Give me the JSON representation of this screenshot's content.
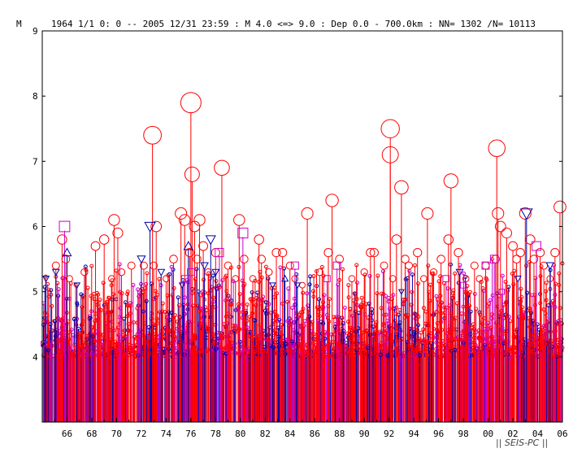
{
  "chart_data": {
    "type": "scatter",
    "style": "magnitude-time stem plot",
    "header": {
      "ylabel": "M",
      "text": "1964 1/1  0: 0 -- 2005 12/31 23:59  : M 4.0 <=> 9.0   :  Dep 0.0 - 700.0km :  NN= 1302 /N= 10113"
    },
    "ylim": [
      3,
      9
    ],
    "yticks": [
      "4",
      "5",
      "6",
      "7",
      "8",
      "9"
    ],
    "xlim": [
      1964,
      2006
    ],
    "xticks": [
      {
        "year": 1966,
        "label": "66"
      },
      {
        "year": 1968,
        "label": "68"
      },
      {
        "year": 1970,
        "label": "70"
      },
      {
        "year": 1972,
        "label": "72"
      },
      {
        "year": 1974,
        "label": "74"
      },
      {
        "year": 1976,
        "label": "76"
      },
      {
        "year": 1978,
        "label": "78"
      },
      {
        "year": 1980,
        "label": "80"
      },
      {
        "year": 1982,
        "label": "82"
      },
      {
        "year": 1984,
        "label": "84"
      },
      {
        "year": 1986,
        "label": "86"
      },
      {
        "year": 1988,
        "label": "88"
      },
      {
        "year": 1990,
        "label": "90"
      },
      {
        "year": 1992,
        "label": "92"
      },
      {
        "year": 1994,
        "label": "94"
      },
      {
        "year": 1996,
        "label": "96"
      },
      {
        "year": 1998,
        "label": "98"
      },
      {
        "year": 2000,
        "label": "00"
      },
      {
        "year": 2002,
        "label": "02"
      },
      {
        "year": 2004,
        "label": "04"
      },
      {
        "year": 2006,
        "label": "06"
      }
    ],
    "footer": "|| SEIS-PC ||",
    "colors": {
      "shallow": "#ff0000",
      "intermediate": "#cc00cc",
      "deep": "#0000aa",
      "axis": "#000000"
    },
    "series": [
      {
        "marker": "circle",
        "color": "#ff0000",
        "points": [
          [
            1965.1,
            5.4
          ],
          [
            1965.6,
            5.8
          ],
          [
            1965.9,
            5.5
          ],
          [
            1966.2,
            5.2
          ],
          [
            1967.4,
            5.3
          ],
          [
            1968.3,
            5.7
          ],
          [
            1969.0,
            5.8
          ],
          [
            1969.6,
            5.2
          ],
          [
            1969.8,
            6.1
          ],
          [
            1970.1,
            5.9
          ],
          [
            1970.4,
            5.3
          ],
          [
            1971.2,
            5.4
          ],
          [
            1972.2,
            5.4
          ],
          [
            1972.9,
            7.4
          ],
          [
            1973.0,
            5.4
          ],
          [
            1973.2,
            6.0
          ],
          [
            1974.0,
            5.2
          ],
          [
            1974.6,
            5.5
          ],
          [
            1975.2,
            6.2
          ],
          [
            1975.5,
            6.1
          ],
          [
            1975.9,
            5.6
          ],
          [
            1976.0,
            7.9
          ],
          [
            1976.1,
            6.8
          ],
          [
            1976.3,
            6.0
          ],
          [
            1976.5,
            5.5
          ],
          [
            1976.7,
            6.1
          ],
          [
            1977.0,
            5.7
          ],
          [
            1977.4,
            5.3
          ],
          [
            1978.0,
            5.6
          ],
          [
            1978.5,
            6.9
          ],
          [
            1979.0,
            5.4
          ],
          [
            1979.6,
            5.2
          ],
          [
            1979.9,
            6.1
          ],
          [
            1980.3,
            5.5
          ],
          [
            1981.0,
            5.2
          ],
          [
            1981.5,
            5.8
          ],
          [
            1981.7,
            5.5
          ],
          [
            1982.3,
            5.3
          ],
          [
            1982.9,
            5.6
          ],
          [
            1983.4,
            5.6
          ],
          [
            1984.0,
            5.4
          ],
          [
            1984.4,
            5.2
          ],
          [
            1985.0,
            5.1
          ],
          [
            1985.4,
            6.2
          ],
          [
            1986.4,
            5.3
          ],
          [
            1987.1,
            5.6
          ],
          [
            1987.4,
            6.4
          ],
          [
            1988.0,
            5.5
          ],
          [
            1989.0,
            5.2
          ],
          [
            1990.0,
            5.3
          ],
          [
            1990.5,
            5.6
          ],
          [
            1990.8,
            5.6
          ],
          [
            1991.6,
            5.4
          ],
          [
            1992.1,
            7.5
          ],
          [
            1992.1,
            7.1
          ],
          [
            1992.3,
            5.2
          ],
          [
            1992.6,
            5.8
          ],
          [
            1993.0,
            6.6
          ],
          [
            1993.3,
            5.5
          ],
          [
            1993.6,
            5.4
          ],
          [
            1994.3,
            5.6
          ],
          [
            1994.8,
            5.2
          ],
          [
            1995.1,
            6.2
          ],
          [
            1995.6,
            5.3
          ],
          [
            1996.2,
            5.5
          ],
          [
            1996.8,
            5.8
          ],
          [
            1997.0,
            6.7
          ],
          [
            1997.6,
            5.6
          ],
          [
            1998.2,
            5.2
          ],
          [
            1998.9,
            5.4
          ],
          [
            1999.3,
            5.2
          ],
          [
            1999.8,
            5.4
          ],
          [
            2000.6,
            5.5
          ],
          [
            2000.7,
            7.2
          ],
          [
            2000.8,
            6.2
          ],
          [
            2001.0,
            6.0
          ],
          [
            2001.5,
            5.9
          ],
          [
            2002.0,
            5.7
          ],
          [
            2002.3,
            5.5
          ],
          [
            2002.6,
            5.6
          ],
          [
            2003.0,
            6.2
          ],
          [
            2003.4,
            5.8
          ],
          [
            2003.7,
            5.5
          ],
          [
            2004.2,
            5.6
          ],
          [
            2004.5,
            5.4
          ],
          [
            2005.0,
            5.2
          ],
          [
            2005.4,
            5.6
          ],
          [
            2005.8,
            6.3
          ]
        ]
      },
      {
        "marker": "square",
        "color": "#cc00cc",
        "points": [
          [
            1964.1,
            4.2
          ],
          [
            1965.8,
            6.0
          ],
          [
            1975.5,
            5.2
          ],
          [
            1976.0,
            5.3
          ],
          [
            1978.3,
            5.6
          ],
          [
            1980.2,
            5.9
          ],
          [
            1984.4,
            5.4
          ],
          [
            1987.0,
            5.2
          ],
          [
            1987.8,
            5.4
          ],
          [
            1996.6,
            5.2
          ],
          [
            1998.0,
            5.1
          ],
          [
            1999.8,
            5.4
          ],
          [
            2000.5,
            5.5
          ],
          [
            2001.1,
            5.0
          ],
          [
            2003.9,
            5.7
          ]
        ]
      },
      {
        "marker": "triangle-up",
        "color": "#0000aa",
        "points": [
          [
            1966.0,
            5.6
          ],
          [
            1975.8,
            5.7
          ],
          [
            1983.6,
            5.2
          ]
        ]
      },
      {
        "marker": "triangle-down",
        "color": "#0000aa",
        "points": [
          [
            1964.3,
            5.2
          ],
          [
            1965.1,
            5.3
          ],
          [
            1966.8,
            5.1
          ],
          [
            1972.0,
            5.5
          ],
          [
            1972.7,
            6.0
          ],
          [
            1973.6,
            5.3
          ],
          [
            1975.3,
            5.1
          ],
          [
            1977.1,
            5.4
          ],
          [
            1977.6,
            5.8
          ],
          [
            1978.0,
            5.3
          ],
          [
            1982.6,
            5.1
          ],
          [
            1984.6,
            5.1
          ],
          [
            1993.0,
            5.0
          ],
          [
            1997.7,
            5.3
          ],
          [
            2002.4,
            5.2
          ],
          [
            2003.1,
            6.2
          ],
          [
            2005.0,
            5.4
          ]
        ]
      }
    ],
    "background_events": {
      "colors": [
        "#ff0000",
        "#ff0000",
        "#ff0000",
        "#cc00cc",
        "#0000aa"
      ],
      "magnitude_range": [
        4.0,
        5.3
      ],
      "per_year": 45
    }
  }
}
